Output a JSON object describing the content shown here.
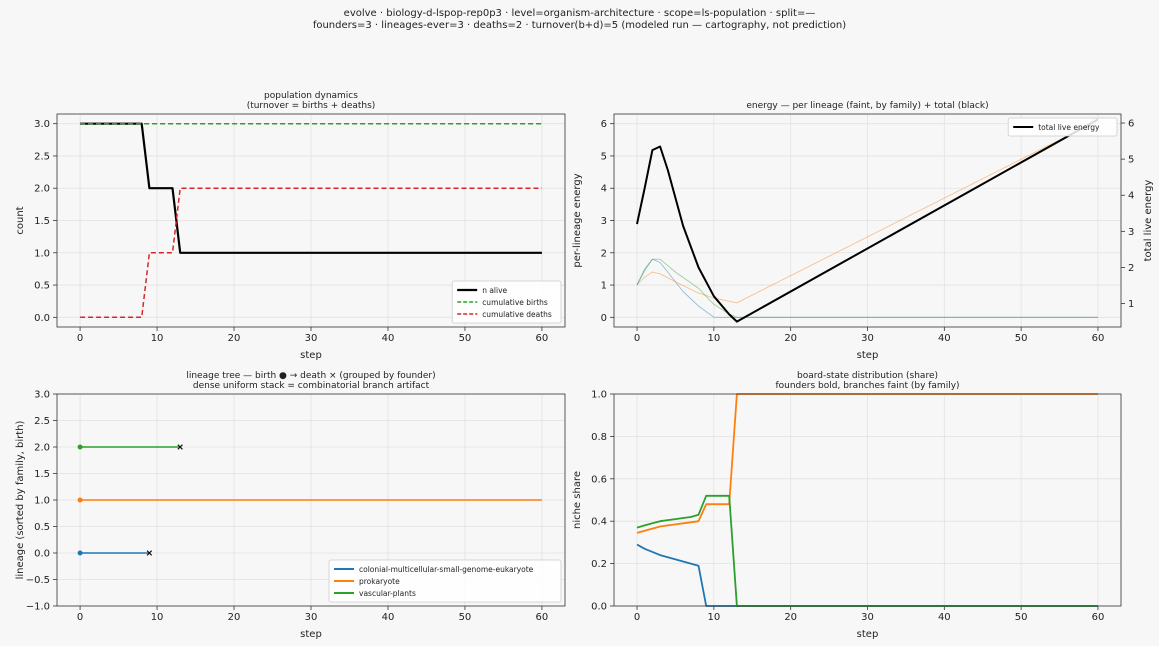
{
  "suptitle": {
    "line1": "evolve · biology-d-lspop-rep0p3 · level=organism-architecture · scope=ls-population · split=—",
    "line2": "founders=3 · lineages-ever=3 · deaths=2 · turnover(b+d)=5   (modeled run — cartography, not prediction)"
  },
  "chart_data": [
    {
      "id": "population",
      "type": "line",
      "title": "population dynamics",
      "subtitle": "(turnover = births + deaths)",
      "xlabel": "step",
      "ylabel": "count",
      "xlim": [
        -3,
        63
      ],
      "ylim": [
        -0.15,
        3.15
      ],
      "xticks": [
        "0",
        "10",
        "20",
        "30",
        "40",
        "50",
        "60"
      ],
      "yticks": [
        "0.0",
        "0.5",
        "1.0",
        "1.5",
        "2.0",
        "2.5",
        "3.0"
      ],
      "grid": true,
      "legend_position": "lower-right",
      "series": [
        {
          "name": "n alive",
          "color": "#000000",
          "style": "solid",
          "x": [
            0,
            8,
            9,
            12,
            13,
            60
          ],
          "y": [
            3,
            3,
            2,
            2,
            1,
            1
          ]
        },
        {
          "name": "cumulative births",
          "color": "#2ca02c",
          "style": "dashed",
          "x": [
            0,
            60
          ],
          "y": [
            3,
            3
          ]
        },
        {
          "name": "cumulative deaths",
          "color": "#d62728",
          "style": "dashed",
          "x": [
            0,
            8,
            9,
            12,
            13,
            60
          ],
          "y": [
            0,
            0,
            1,
            1,
            2,
            2
          ]
        }
      ]
    },
    {
      "id": "energy",
      "type": "line",
      "title": "energy — per lineage (faint, by family) + total (black)",
      "xlabel": "step",
      "ylabel": "per-lineage energy",
      "ylabel_right": "total live energy",
      "xlim": [
        -3,
        63
      ],
      "ylim": [
        -0.3,
        6.3
      ],
      "ylim_right": [
        0.35,
        6.25
      ],
      "xticks": [
        "0",
        "10",
        "20",
        "30",
        "40",
        "50",
        "60"
      ],
      "yticks": [
        "0",
        "1",
        "2",
        "3",
        "4",
        "5",
        "6"
      ],
      "yticks_right": [
        "1",
        "2",
        "3",
        "4",
        "5",
        "6"
      ],
      "grid": true,
      "legend_position": "upper-right",
      "series": [
        {
          "name": "colonial-multicellular-small-genome-eukaryote",
          "color": "#1f77b4",
          "faint": true,
          "x": [
            0,
            1,
            2,
            3,
            4,
            6,
            8,
            10,
            13,
            60
          ],
          "y": [
            1.0,
            1.45,
            1.8,
            1.7,
            1.4,
            0.8,
            0.35,
            0.0,
            0.0,
            0.0
          ]
        },
        {
          "name": "prokaryote",
          "color": "#ff7f0e",
          "faint": true,
          "x": [
            0,
            1,
            2,
            3,
            5,
            8,
            10,
            13,
            60
          ],
          "y": [
            1.0,
            1.25,
            1.4,
            1.35,
            1.1,
            0.75,
            0.6,
            0.45,
            6.1
          ]
        },
        {
          "name": "vascular-plants",
          "color": "#2ca02c",
          "faint": true,
          "x": [
            0,
            1,
            2,
            3,
            5,
            8,
            10,
            12,
            13,
            60
          ],
          "y": [
            1.0,
            1.5,
            1.8,
            1.8,
            1.4,
            0.9,
            0.4,
            0.1,
            0.0,
            0.0
          ]
        },
        {
          "name": "total live energy",
          "color": "#000000",
          "axis": "right",
          "legend": true,
          "x": [
            0,
            1,
            2,
            3,
            4,
            6,
            8,
            10,
            12,
            13,
            60
          ],
          "y": [
            3.2,
            4.2,
            5.25,
            5.35,
            4.7,
            3.15,
            2.0,
            1.2,
            0.7,
            0.5,
            6.1
          ]
        }
      ]
    },
    {
      "id": "lineage-tree",
      "type": "line",
      "title": "lineage tree — birth ● → death ×  (grouped by founder)",
      "subtitle": "dense uniform stack = combinatorial branch artifact",
      "xlabel": "step",
      "ylabel": "lineage (sorted by family, birth)",
      "xlim": [
        -3,
        63
      ],
      "ylim": [
        -1.0,
        3.0
      ],
      "xticks": [
        "0",
        "10",
        "20",
        "30",
        "40",
        "50",
        "60"
      ],
      "yticks": [
        "−1.0",
        "−0.5",
        "0.0",
        "0.5",
        "1.0",
        "1.5",
        "2.0",
        "2.5",
        "3.0"
      ],
      "grid": true,
      "legend_position": "lower-right",
      "series": [
        {
          "name": "colonial-multicellular-small-genome-eukaryote",
          "color": "#1f77b4",
          "row": 0,
          "birth": 0,
          "end": 9,
          "died": true
        },
        {
          "name": "prokaryote",
          "color": "#ff7f0e",
          "row": 1,
          "birth": 0,
          "end": 60,
          "died": false
        },
        {
          "name": "vascular-plants",
          "color": "#2ca02c",
          "row": 2,
          "birth": 0,
          "end": 13,
          "died": true
        }
      ]
    },
    {
      "id": "niche-share",
      "type": "line",
      "title": "board-state distribution (share)",
      "subtitle": "founders bold, branches faint (by family)",
      "xlabel": "step",
      "ylabel": "niche share",
      "xlim": [
        -3,
        63
      ],
      "ylim": [
        0.0,
        1.0
      ],
      "xticks": [
        "0",
        "10",
        "20",
        "30",
        "40",
        "50",
        "60"
      ],
      "yticks": [
        "0.0",
        "0.2",
        "0.4",
        "0.6",
        "0.8",
        "1.0"
      ],
      "grid": true,
      "series": [
        {
          "name": "colonial-multicellular-small-genome-eukaryote",
          "color": "#1f77b4",
          "x": [
            0,
            1,
            2,
            3,
            4,
            5,
            6,
            7,
            8,
            9,
            10,
            13,
            60
          ],
          "y": [
            0.29,
            0.27,
            0.255,
            0.24,
            0.23,
            0.22,
            0.21,
            0.2,
            0.19,
            0.0,
            0.0,
            0.0,
            0.0
          ]
        },
        {
          "name": "prokaryote",
          "color": "#ff7f0e",
          "x": [
            0,
            1,
            2,
            3,
            4,
            5,
            6,
            7,
            8,
            9,
            12,
            13,
            60
          ],
          "y": [
            0.345,
            0.355,
            0.365,
            0.375,
            0.38,
            0.385,
            0.39,
            0.395,
            0.4,
            0.48,
            0.48,
            1.0,
            1.0
          ]
        },
        {
          "name": "vascular-plants",
          "color": "#2ca02c",
          "x": [
            0,
            1,
            2,
            3,
            4,
            5,
            6,
            7,
            8,
            9,
            12,
            13,
            60
          ],
          "y": [
            0.37,
            0.38,
            0.39,
            0.4,
            0.405,
            0.41,
            0.415,
            0.42,
            0.43,
            0.52,
            0.52,
            0.0,
            0.0
          ]
        }
      ]
    }
  ]
}
